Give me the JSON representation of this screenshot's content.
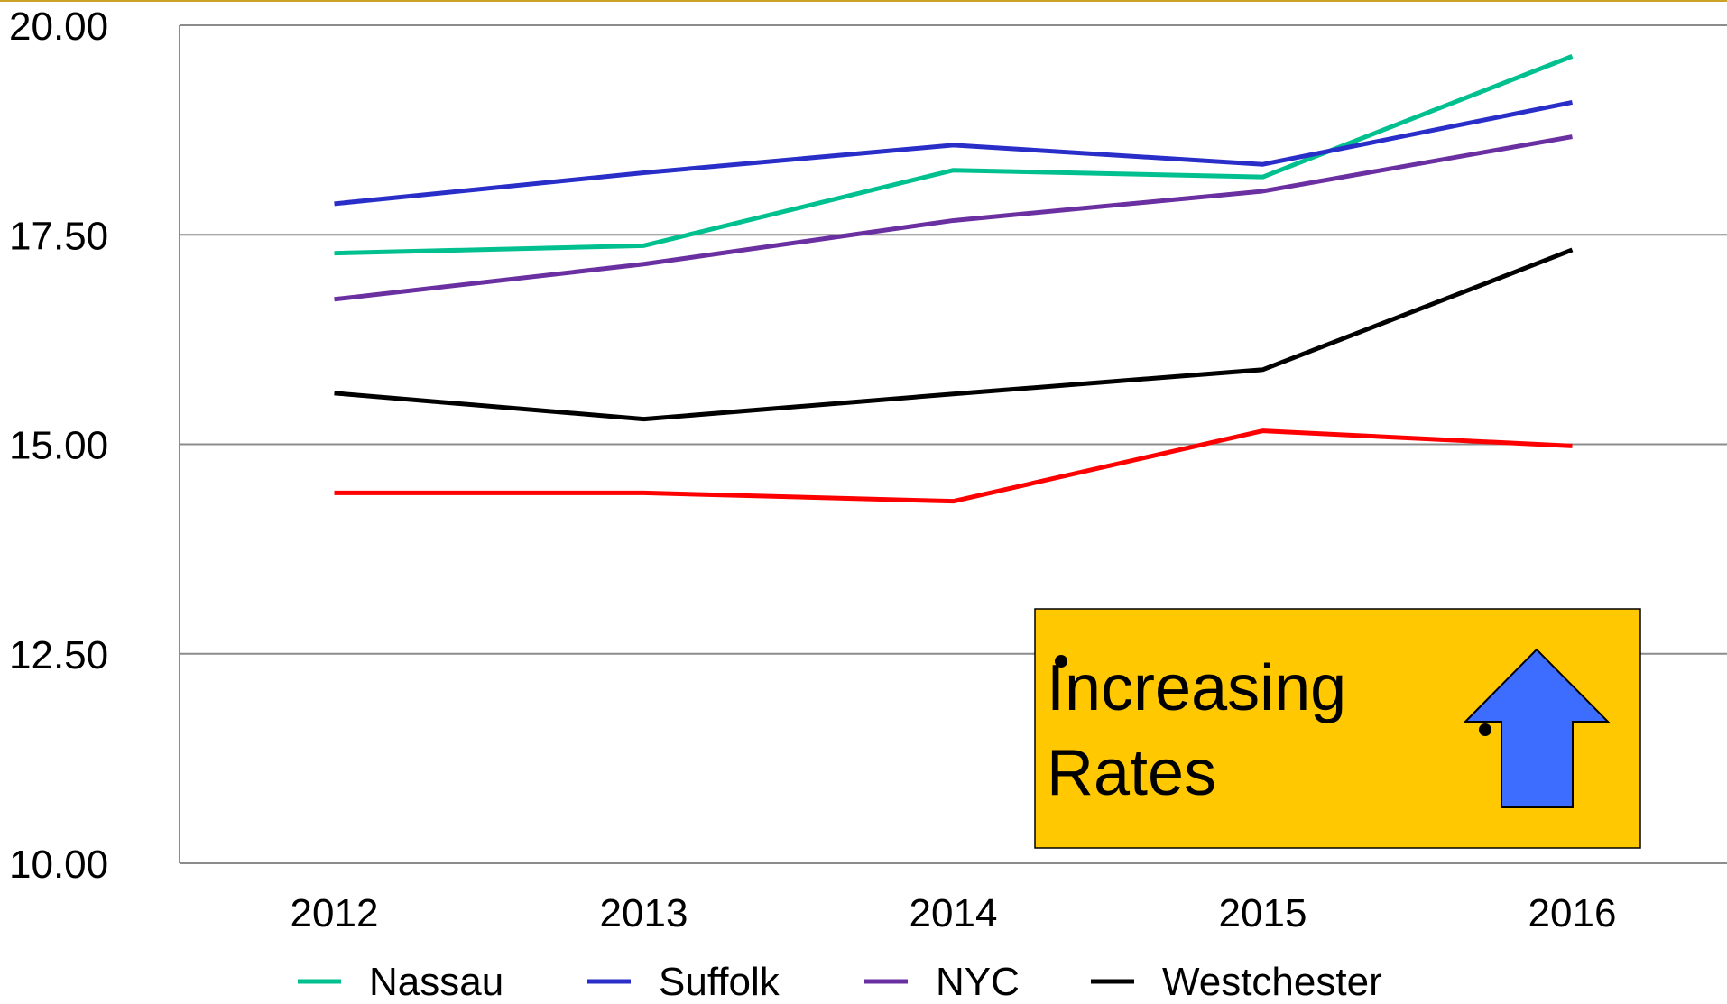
{
  "chart_data": {
    "type": "line",
    "categories": [
      "2012",
      "2013",
      "2014",
      "2015",
      "2016"
    ],
    "series": [
      {
        "name": "Nassau",
        "color": "#00c08f",
        "values": [
          17.28,
          17.37,
          18.27,
          18.19,
          19.63
        ]
      },
      {
        "name": "Suffolk",
        "color": "#2a2ec8",
        "values": [
          17.87,
          18.24,
          18.57,
          18.34,
          19.08
        ]
      },
      {
        "name": "NYC",
        "color": "#6a2fa0",
        "values": [
          16.73,
          17.15,
          17.67,
          18.02,
          18.67
        ]
      },
      {
        "name": "Westchester",
        "color": "#000000",
        "values": [
          15.61,
          15.3,
          15.6,
          15.89,
          17.32
        ]
      },
      {
        "color": "#ff0000",
        "values": [
          14.42,
          14.42,
          14.32,
          15.16,
          14.98
        ]
      }
    ],
    "ylim": [
      10,
      20
    ],
    "yticks": [
      {
        "value": 10,
        "label": "10.00"
      },
      {
        "value": 12.5,
        "label": "12.50"
      },
      {
        "value": 15,
        "label": "15.00"
      },
      {
        "value": 17.5,
        "label": "17.50"
      },
      {
        "value": 20,
        "label": "20.00"
      }
    ],
    "grid": true,
    "legend": "bottom",
    "annotation": [
      "Increasing",
      "Rates"
    ]
  }
}
